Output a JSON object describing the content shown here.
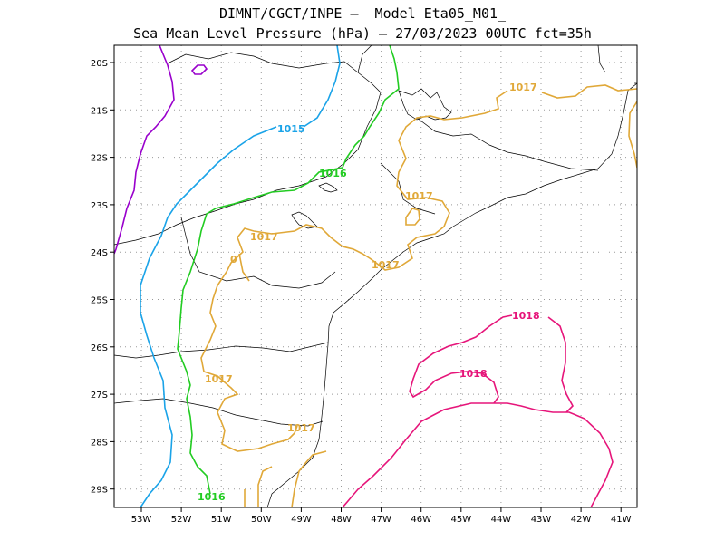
{
  "title": {
    "line1": "DIMNT/CGCT/INPE —  Model Eta05_M01_",
    "line2": "Sea Mean Level Pressure (hPa) — 27/03/2023 00UTC fct=35h"
  },
  "axes": {
    "lon_labels": [
      "53W",
      "52W",
      "51W",
      "50W",
      "49W",
      "48W",
      "47W",
      "46W",
      "45W",
      "44W",
      "43W",
      "42W",
      "41W"
    ],
    "lat_labels": [
      "20S",
      "21S",
      "22S",
      "23S",
      "24S",
      "25S",
      "26S",
      "27S",
      "28S",
      "29S"
    ]
  },
  "colors": {
    "c1014": "#9900cc",
    "c1015": "#1aa3e8",
    "c1016": "#22cc22",
    "c1017": "#e0a838",
    "c1018": "#e6157a",
    "coast": "#000000",
    "grid": "#999999"
  },
  "contours": {
    "l1015": "1015",
    "l1016a": "1016",
    "l1016b": "1016",
    "l1017a": "1017",
    "l1017b": "1017",
    "l1017c": "1017",
    "l1017d": "1017",
    "l1017e": "1017",
    "l1017f": "1017",
    "l1018a": "1018",
    "l1018b": "1018",
    "l0": "0"
  }
}
